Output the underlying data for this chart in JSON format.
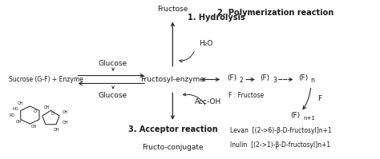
{
  "bg_color": "#ffffff",
  "text_color": "#1a1a1a",
  "arrow_color": "#2a2a2a",
  "labels": {
    "fructose": "Fructose",
    "hydrolysis": "1. Hydrolysis",
    "h2o": "H₂O",
    "glucose_top": "Glucose",
    "glucose_bottom": "Glucose",
    "sucrose": "Sucrose (G-F) + Enzyme",
    "fructosyl_enzyme": "Fructosyl-enzyme",
    "acc_oh": "Acc-OH",
    "acceptor_reaction": "3. Acceptor reaction",
    "fructo_conjugate": "Fructo-conjugate",
    "polymerization": "2. Polymerization reaction",
    "f2": "(F)",
    "f2_sub": "2",
    "f3": "(F)",
    "f3_sub": "3",
    "fn": "(F)",
    "fn_sub": "n",
    "fn1": "(F)",
    "fn1_sub": "n+1",
    "f_fructose": "F : Fructose",
    "f_label": "F",
    "levan": "Levan  [(2->6)-β-D-fructosyl]n+1",
    "inulin": "Inulin  [(2->1)-β-D-fructosyl]n+1"
  }
}
